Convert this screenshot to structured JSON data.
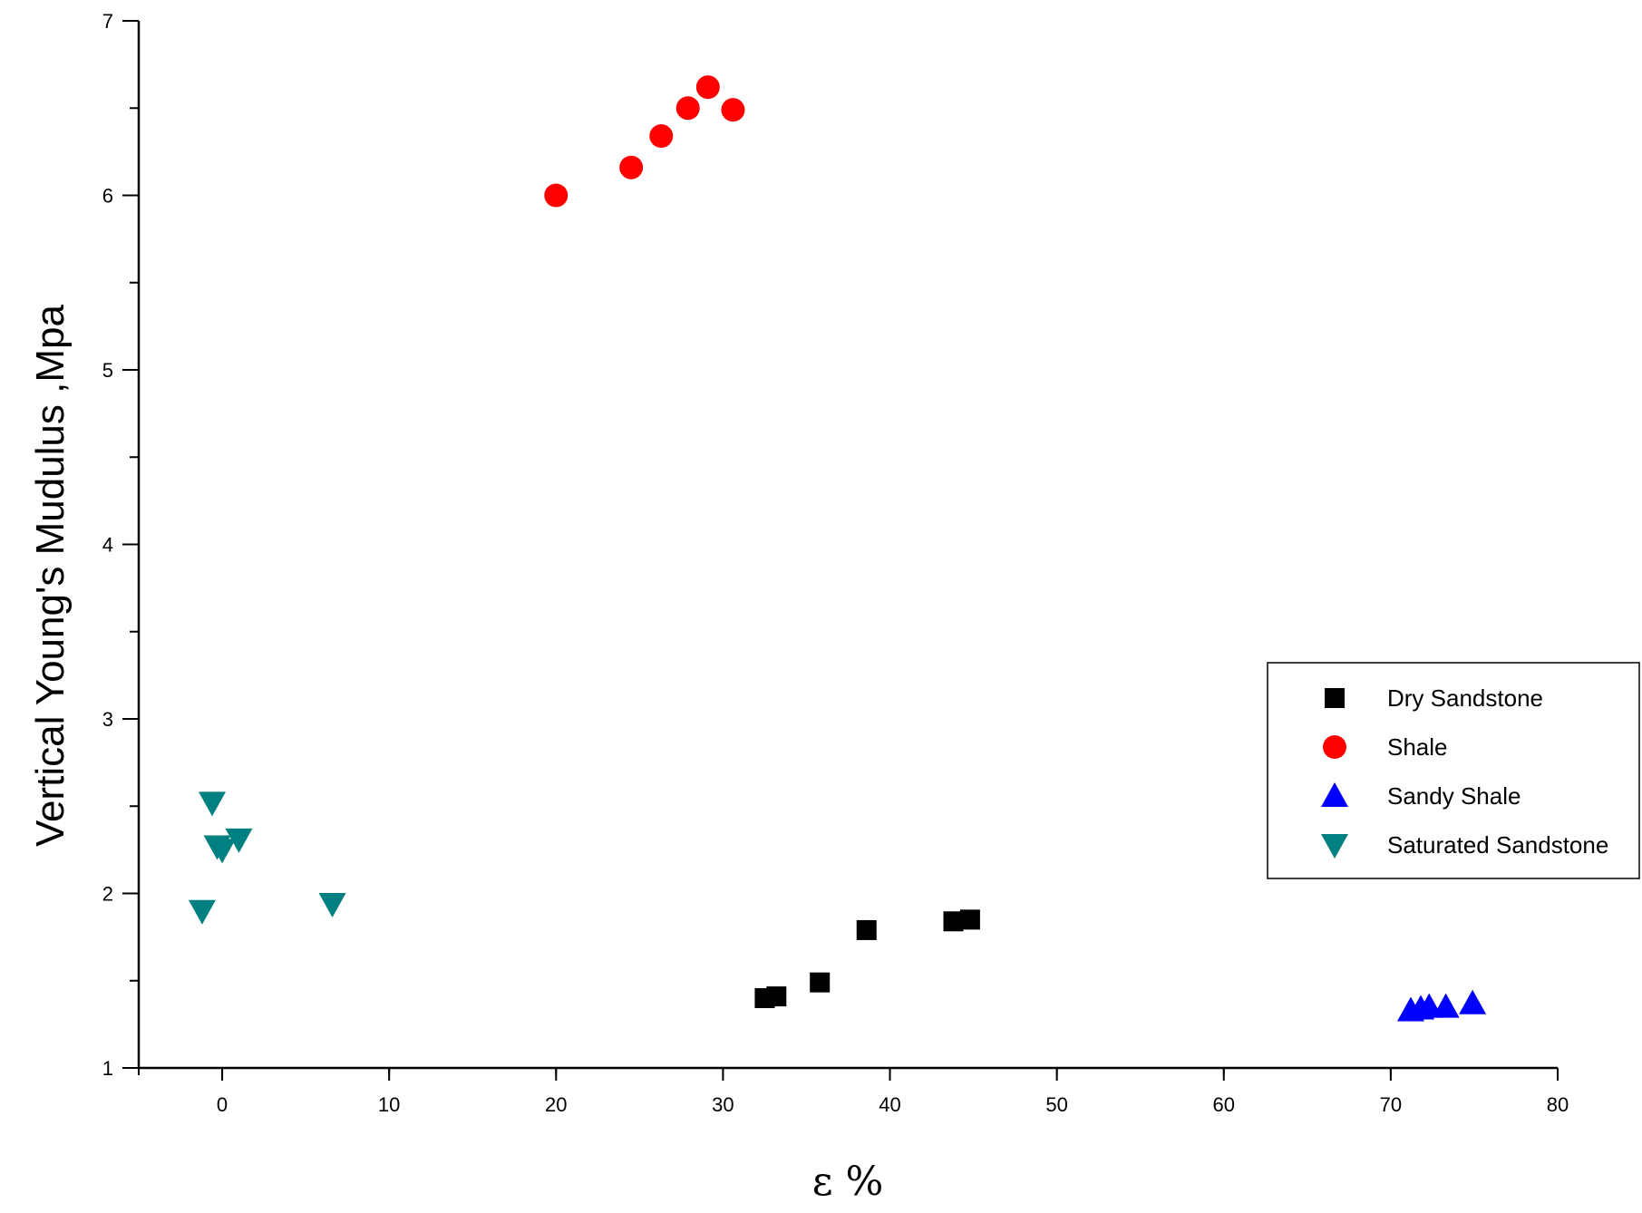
{
  "chart_data": {
    "type": "scatter",
    "xlabel": "ε %",
    "ylabel": "Vertical Young's Mudulus ,Mpa",
    "xlim": [
      -5,
      80
    ],
    "ylim": [
      1,
      7
    ],
    "x_ticks": [
      0,
      10,
      20,
      30,
      40,
      50,
      60,
      70,
      80
    ],
    "y_ticks": [
      1,
      2,
      3,
      4,
      5,
      6,
      7
    ],
    "grid": false,
    "legend_position": "right",
    "series": [
      {
        "name": "Dry Sandstone",
        "marker": "square",
        "color": "#000000",
        "points": [
          [
            32.5,
            1.4
          ],
          [
            33.2,
            1.41
          ],
          [
            35.8,
            1.49
          ],
          [
            38.6,
            1.79
          ],
          [
            43.8,
            1.84
          ],
          [
            44.8,
            1.85
          ]
        ]
      },
      {
        "name": "Shale",
        "marker": "circle",
        "color": "#ff0000",
        "points": [
          [
            20.0,
            6.0
          ],
          [
            24.5,
            6.16
          ],
          [
            26.3,
            6.34
          ],
          [
            27.9,
            6.5
          ],
          [
            29.1,
            6.62
          ],
          [
            30.6,
            6.49
          ]
        ]
      },
      {
        "name": "Sandy Shale",
        "marker": "triangle-up",
        "color": "#0000ff",
        "points": [
          [
            71.2,
            1.33
          ],
          [
            71.8,
            1.34
          ],
          [
            72.3,
            1.35
          ],
          [
            73.3,
            1.35
          ],
          [
            74.9,
            1.37
          ]
        ]
      },
      {
        "name": "Saturated Sandstone",
        "marker": "triangle-down",
        "color": "#008080",
        "points": [
          [
            -0.6,
            2.52
          ],
          [
            -0.3,
            2.27
          ],
          [
            0.0,
            2.25
          ],
          [
            1.0,
            2.31
          ],
          [
            -1.2,
            1.9
          ],
          [
            6.6,
            1.94
          ]
        ]
      }
    ]
  }
}
